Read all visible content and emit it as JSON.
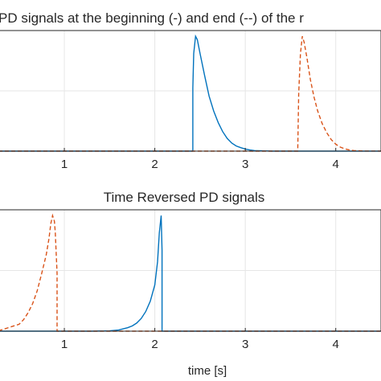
{
  "chart_data": [
    {
      "type": "line",
      "title": "PD signals at the beginning (-) and end (--) of the r",
      "xlabel": "",
      "ylabel": "",
      "xlim": [
        0.2,
        4.5
      ],
      "ylim": [
        0,
        1.05
      ],
      "xticks": [
        1,
        2,
        3,
        4
      ],
      "xtick_labels": [
        "1",
        "2",
        "3",
        "4"
      ],
      "grid": true,
      "series": [
        {
          "style": "solid",
          "color": "#0072BD",
          "x": [
            0.2,
            2.42,
            2.42,
            2.43,
            2.45,
            2.47,
            2.5,
            2.55,
            2.6,
            2.65,
            2.7,
            2.75,
            2.8,
            2.85,
            2.9,
            2.95,
            3.0,
            3.05,
            3.1,
            3.2,
            3.3,
            4.5
          ],
          "y": [
            0,
            0,
            0.55,
            0.85,
            1.0,
            0.97,
            0.85,
            0.66,
            0.48,
            0.35,
            0.25,
            0.17,
            0.11,
            0.07,
            0.045,
            0.03,
            0.018,
            0.01,
            0.005,
            0.002,
            0,
            0
          ]
        },
        {
          "style": "dashed",
          "color": "#D95319",
          "x": [
            0.2,
            3.58,
            3.59,
            3.61,
            3.63,
            3.65,
            3.68,
            3.72,
            3.76,
            3.8,
            3.85,
            3.9,
            3.95,
            4.0,
            4.05,
            4.1,
            4.15,
            4.2,
            4.3,
            4.5
          ],
          "y": [
            0,
            0,
            0.5,
            0.85,
            1.0,
            0.95,
            0.82,
            0.62,
            0.47,
            0.35,
            0.24,
            0.16,
            0.1,
            0.06,
            0.035,
            0.02,
            0.01,
            0.005,
            0.001,
            0
          ]
        }
      ]
    },
    {
      "type": "line",
      "title": "Time Reversed PD signals",
      "xlabel": "time [s]",
      "ylabel": "",
      "xlim": [
        0.2,
        4.5
      ],
      "ylim": [
        0,
        1.05
      ],
      "xticks": [
        1,
        2,
        3,
        4
      ],
      "xtick_labels": [
        "1",
        "2",
        "3",
        "4"
      ],
      "grid": true,
      "series": [
        {
          "style": "solid",
          "color": "#0072BD",
          "x": [
            0.2,
            1.3,
            1.5,
            1.6,
            1.7,
            1.75,
            1.8,
            1.85,
            1.9,
            1.95,
            2.0,
            2.03,
            2.05,
            2.07,
            2.08,
            2.08,
            4.5
          ],
          "y": [
            0,
            0,
            0.003,
            0.01,
            0.03,
            0.045,
            0.07,
            0.11,
            0.17,
            0.26,
            0.4,
            0.6,
            0.85,
            1.0,
            0.7,
            0,
            0
          ]
        },
        {
          "style": "dashed",
          "color": "#D95319",
          "x": [
            0.2,
            0.3,
            0.4,
            0.5,
            0.55,
            0.6,
            0.65,
            0.7,
            0.75,
            0.8,
            0.83,
            0.85,
            0.87,
            0.89,
            0.9,
            0.92,
            0.92,
            4.5
          ],
          "y": [
            0.003,
            0.01,
            0.035,
            0.06,
            0.1,
            0.16,
            0.24,
            0.35,
            0.5,
            0.66,
            0.8,
            0.93,
            1.0,
            0.95,
            0.85,
            0.5,
            0,
            0
          ]
        }
      ]
    }
  ]
}
